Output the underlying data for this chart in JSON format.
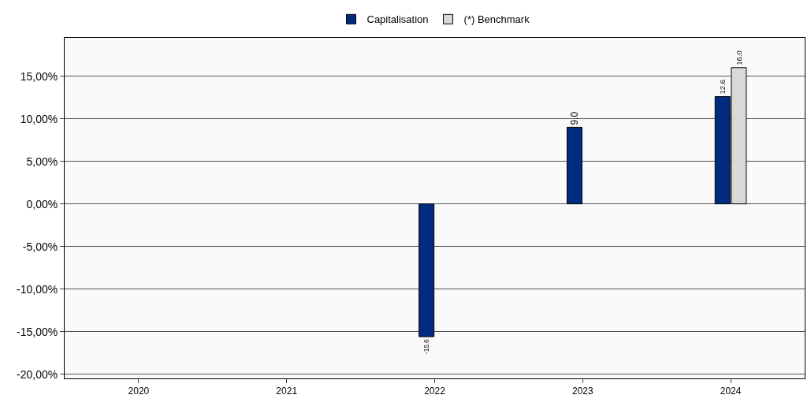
{
  "chart_data": {
    "type": "bar",
    "categories": [
      "2020",
      "2021",
      "2022",
      "2023",
      "2024"
    ],
    "series": [
      {
        "name": "Capitalisation",
        "color": "#002b7f",
        "values": [
          null,
          null,
          -15.6,
          9.0,
          12.6
        ],
        "value_labels": [
          null,
          null,
          "-15.6",
          "9.0",
          "12.6"
        ]
      },
      {
        "name": "(*) Benchmark",
        "color": "#d9d9d9",
        "values": [
          null,
          null,
          null,
          null,
          16.0
        ],
        "value_labels": [
          null,
          null,
          null,
          null,
          "16.0"
        ]
      }
    ],
    "ylim": [
      -20.5,
      19.5
    ],
    "yticks": [
      {
        "value": -20,
        "label": "-20,00%"
      },
      {
        "value": -15,
        "label": "-15,00%"
      },
      {
        "value": -10,
        "label": "-10,00%"
      },
      {
        "value": -5,
        "label": "-5,00%"
      },
      {
        "value": 0,
        "label": "0,00%"
      },
      {
        "value": 5,
        "label": "5,00%"
      },
      {
        "value": 10,
        "label": "10,00%"
      },
      {
        "value": 15,
        "label": "15,00%"
      }
    ],
    "grid": "y",
    "legend": "top"
  }
}
